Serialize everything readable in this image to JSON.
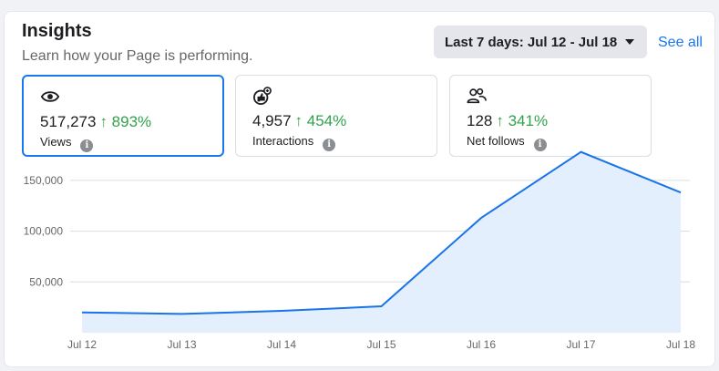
{
  "header": {
    "title": "Insights",
    "subtitle": "Learn how your Page is performing.",
    "date_range": "Last 7 days: Jul 12 - Jul 18",
    "see_all": "See all"
  },
  "metrics": [
    {
      "value": "517,273",
      "change": "↑ 893%",
      "label": "Views",
      "icon": "eye-icon",
      "active": true
    },
    {
      "value": "4,957",
      "change": "↑ 454%",
      "label": "Interactions",
      "icon": "thumbs-up-icon",
      "active": false
    },
    {
      "value": "128",
      "change": "↑ 341%",
      "label": "Net follows",
      "icon": "people-icon",
      "active": false
    }
  ],
  "colors": {
    "accent": "#1877f2",
    "positive": "#31a24c",
    "line": "#1a73e8",
    "area_fill": "#e3effd"
  },
  "chart_data": {
    "type": "area",
    "x": [
      "Jul 12",
      "Jul 13",
      "Jul 14",
      "Jul 15",
      "Jul 16",
      "Jul 17",
      "Jul 18"
    ],
    "series": [
      {
        "values": [
          20000,
          18500,
          21500,
          26000,
          113000,
          178000,
          138000
        ]
      }
    ],
    "ytick_labels": [
      "150,000",
      "100,000",
      "50,000"
    ],
    "yticks": [
      150000,
      100000,
      50000
    ],
    "ylim": [
      0,
      175000
    ],
    "grid": true
  }
}
